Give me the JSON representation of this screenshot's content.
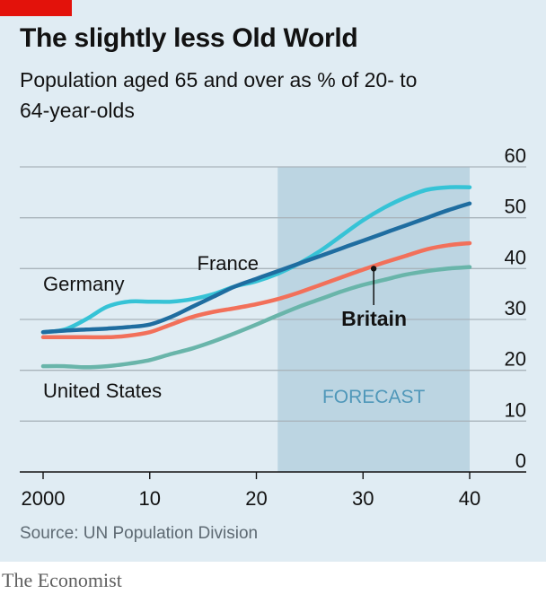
{
  "header": {
    "title": "The slightly less Old World",
    "subtitle": "Population aged 65 and over as % of 20- to 64-year-olds"
  },
  "footer": {
    "source": "Source: UN Population Division",
    "brand": "The Economist"
  },
  "colors": {
    "background": "#e0ecf3",
    "forecast_band": "#bcd5e2",
    "gridline": "#a9b4bb",
    "brand_red": "#e3120b"
  },
  "chart_data": {
    "type": "line",
    "xlabel": "",
    "ylabel": "",
    "xlim": [
      1998,
      2042
    ],
    "ylim": [
      0,
      60
    ],
    "yticks": [
      0,
      10,
      20,
      30,
      40,
      50,
      60
    ],
    "xticks": [
      2000,
      2010,
      2020,
      2030,
      2040
    ],
    "xtick_labels": [
      "2000",
      "10",
      "20",
      "30",
      "40"
    ],
    "forecast": {
      "label": "FORECAST",
      "start": 2022,
      "end": 2040
    },
    "series": [
      {
        "name": "Germany",
        "color": "#36c3d6",
        "label_bold": false,
        "x": [
          2000,
          2002,
          2004,
          2006,
          2008,
          2010,
          2012,
          2014,
          2016,
          2018,
          2020,
          2022,
          2024,
          2026,
          2028,
          2030,
          2032,
          2034,
          2036,
          2038,
          2040
        ],
        "values": [
          27.5,
          28,
          30,
          32.5,
          33.5,
          33.5,
          33.5,
          34,
          35,
          36.5,
          37.5,
          39,
          41,
          43.5,
          46.5,
          49.5,
          52,
          54,
          55.5,
          56,
          56
        ]
      },
      {
        "name": "France",
        "color": "#1f6da0",
        "label_bold": false,
        "x": [
          2000,
          2002,
          2004,
          2006,
          2008,
          2010,
          2012,
          2014,
          2016,
          2018,
          2020,
          2022,
          2024,
          2026,
          2028,
          2030,
          2032,
          2034,
          2036,
          2038,
          2040
        ],
        "values": [
          27.5,
          27.8,
          28,
          28.2,
          28.5,
          29,
          30.5,
          32.5,
          34.5,
          36.5,
          38,
          39.5,
          41,
          42.5,
          44,
          45.5,
          47,
          48.5,
          50,
          51.5,
          52.8
        ]
      },
      {
        "name": "Britain",
        "color": "#f2705a",
        "label_bold": true,
        "x": [
          2000,
          2002,
          2004,
          2006,
          2008,
          2010,
          2012,
          2014,
          2016,
          2018,
          2020,
          2022,
          2024,
          2026,
          2028,
          2030,
          2032,
          2034,
          2036,
          2038,
          2040
        ],
        "values": [
          26.5,
          26.5,
          26.5,
          26.5,
          26.8,
          27.5,
          29,
          30.5,
          31.5,
          32.2,
          33,
          34,
          35.3,
          36.8,
          38.3,
          39.8,
          41.2,
          42.5,
          43.8,
          44.6,
          45
        ]
      },
      {
        "name": "United States",
        "color": "#69b5aa",
        "label_bold": false,
        "x": [
          2000,
          2002,
          2004,
          2006,
          2008,
          2010,
          2012,
          2014,
          2016,
          2018,
          2020,
          2022,
          2024,
          2026,
          2028,
          2030,
          2032,
          2034,
          2036,
          2038,
          2040
        ],
        "values": [
          20.8,
          20.8,
          20.6,
          20.8,
          21.3,
          22,
          23.2,
          24.3,
          25.7,
          27.3,
          29,
          30.8,
          32.5,
          34,
          35.5,
          36.8,
          37.8,
          38.8,
          39.5,
          40,
          40.3
        ]
      }
    ],
    "annotations": [
      {
        "series": "Britain",
        "x": 2031,
        "value": 40
      }
    ]
  }
}
